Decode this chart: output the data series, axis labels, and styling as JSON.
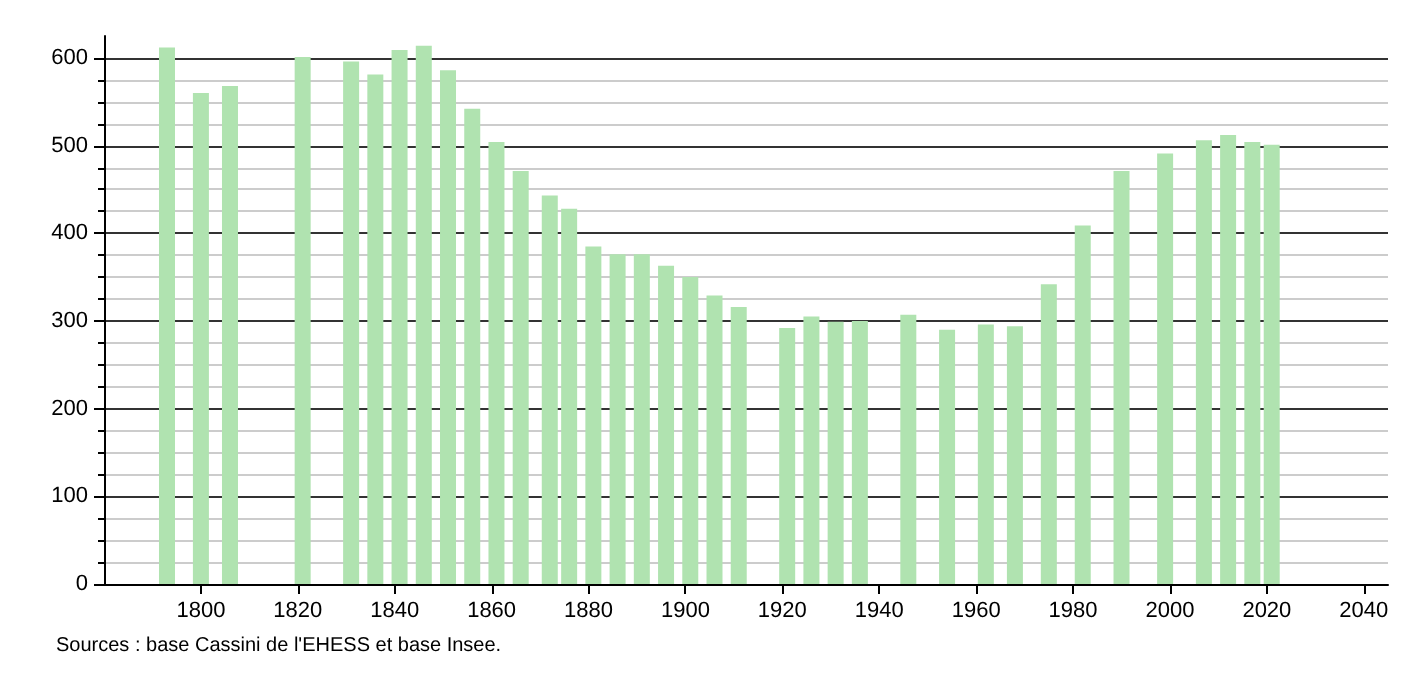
{
  "chart_data": {
    "type": "bar",
    "x": [
      1793,
      1800,
      1806,
      1821,
      1831,
      1836,
      1841,
      1846,
      1851,
      1856,
      1861,
      1866,
      1872,
      1876,
      1881,
      1886,
      1891,
      1896,
      1901,
      1906,
      1911,
      1921,
      1926,
      1931,
      1936,
      1946,
      1954,
      1962,
      1968,
      1975,
      1982,
      1990,
      1999,
      2007,
      2012,
      2017,
      2021
    ],
    "values": [
      612,
      560,
      568,
      601,
      596,
      581,
      609,
      614,
      586,
      542,
      504,
      471,
      443,
      428,
      385,
      376,
      376,
      363,
      350,
      329,
      316,
      292,
      305,
      299,
      300,
      307,
      290,
      296,
      294,
      342,
      409,
      471,
      491,
      506,
      512,
      504,
      501
    ],
    "color": "#b0e3b0",
    "xlim": [
      1780,
      2045
    ],
    "xticks": [
      1800,
      1820,
      1840,
      1860,
      1880,
      1900,
      1920,
      1940,
      1960,
      1980,
      2000,
      2020,
      2040
    ],
    "ylim": [
      0,
      625
    ],
    "yticks": [
      0,
      100,
      200,
      300,
      400,
      500,
      600
    ],
    "grid": "y",
    "annotations": [
      "Sources : base Cassini de l'EHESS et base Insee."
    ]
  }
}
